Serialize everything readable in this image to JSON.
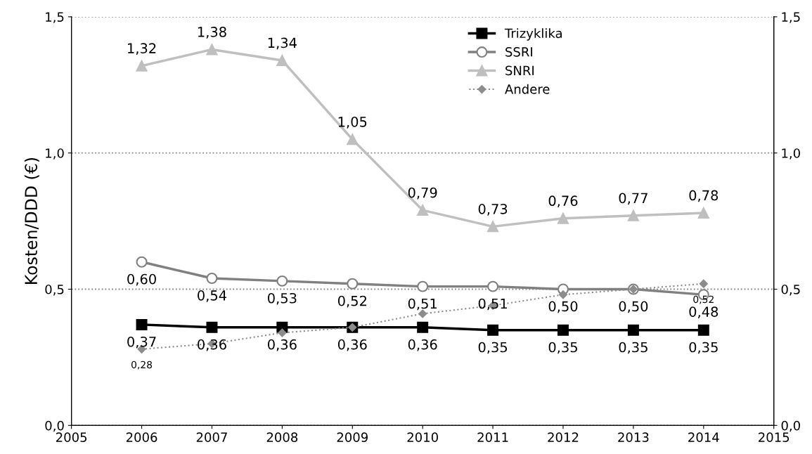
{
  "chart_data": {
    "type": "line",
    "ylabel": "Kosten/DDD (€)",
    "x": [
      2006,
      2007,
      2008,
      2009,
      2010,
      2011,
      2012,
      2013,
      2014
    ],
    "xlim": [
      2005,
      2015
    ],
    "xticks": [
      2005,
      2006,
      2007,
      2008,
      2009,
      2010,
      2011,
      2012,
      2013,
      2014,
      2015
    ],
    "ylim": [
      0,
      1.5
    ],
    "yticks": [
      {
        "value": 0,
        "label": "0,0"
      },
      {
        "value": 0.5,
        "label": "0,5"
      },
      {
        "value": 1.0,
        "label": "1,0"
      },
      {
        "value": 1.5,
        "label": "1,5"
      }
    ],
    "y2lim": [
      0,
      1.5
    ],
    "y2ticks": [
      {
        "value": 0,
        "label": "0,0"
      },
      {
        "value": 0.5,
        "label": "0,5"
      },
      {
        "value": 1.0,
        "label": "1,0"
      },
      {
        "value": 1.5,
        "label": "1,5"
      }
    ],
    "grid": "y",
    "legend": "top",
    "series": [
      {
        "name": "Trizyklika",
        "color": "#000000",
        "marker": "square",
        "line_style": "solid",
        "values": [
          0.37,
          0.36,
          0.36,
          0.36,
          0.36,
          0.35,
          0.35,
          0.35,
          0.35
        ],
        "value_labels": [
          "0,37",
          "0,36",
          "0,36",
          "0,36",
          "0,36",
          "0,35",
          "0,35",
          "0,35",
          "0,35"
        ]
      },
      {
        "name": "SSRI",
        "color": "#808080",
        "marker": "circle",
        "line_style": "solid",
        "values": [
          0.6,
          0.54,
          0.53,
          0.52,
          0.51,
          0.51,
          0.5,
          0.5,
          0.48
        ],
        "value_labels": [
          "0,60",
          "0,54",
          "0,53",
          "0,52",
          "0,51",
          "0,51",
          "0,50",
          "0,50",
          "0,48"
        ]
      },
      {
        "name": "SNRI",
        "color": "#bfbfbf",
        "marker": "triangle",
        "line_style": "solid",
        "values": [
          1.32,
          1.38,
          1.34,
          1.05,
          0.79,
          0.73,
          0.76,
          0.77,
          0.78
        ],
        "value_labels": [
          "1,32",
          "1,38",
          "1,34",
          "1,05",
          "0,79",
          "0,73",
          "0,76",
          "0,77",
          "0,78"
        ]
      },
      {
        "name": "Andere",
        "color": "#8c8c8c",
        "marker": "diamond",
        "line_style": "dotted",
        "values": [
          0.28,
          0.3,
          0.34,
          0.36,
          0.41,
          0.44,
          0.48,
          0.5,
          0.52
        ],
        "value_labels": [
          "0,28",
          null,
          null,
          null,
          null,
          null,
          null,
          null,
          "0,52"
        ]
      }
    ]
  }
}
